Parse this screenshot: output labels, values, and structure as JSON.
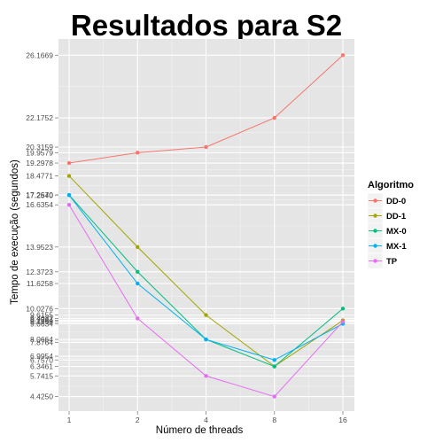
{
  "chart_data": {
    "type": "line",
    "title": "Resultados para S2",
    "xlabel": "Número de threads",
    "ylabel": "Tempo de execução (segundos)",
    "x_categories": [
      "1",
      "2",
      "4",
      "8",
      "16"
    ],
    "ylim": [
      3.5,
      27.2
    ],
    "y_ticks": [
      4.425,
      5.7415,
      6.3461,
      6.757,
      6.9954,
      7.8764,
      8.0664,
      9.0634,
      9.1958,
      9.2784,
      9.4032,
      9.6155,
      10.0276,
      11.6258,
      12.3723,
      13.9523,
      16.6354,
      17.254,
      17.267,
      18.4771,
      19.2978,
      19.9579,
      20.3159,
      22.1752,
      26.1669
    ],
    "y_tick_labels": [
      "4.4250",
      "5.7415",
      "6.3461",
      "6.7570",
      "6.9954",
      "7.8764",
      "8.0664",
      "9.0634",
      "9.1958",
      "9.2784",
      "9.4032",
      "9.6155",
      "10.0276",
      "11.6258",
      "12.3723",
      "13.9523",
      "16.6354",
      "17.2540",
      "17.2670",
      "18.4771",
      "19.2978",
      "19.9579",
      "20.3159",
      "22.1752",
      "26.1669"
    ],
    "grid": true,
    "legend": {
      "title": "Algoritmo",
      "placement": "right"
    },
    "series": [
      {
        "name": "DD-0",
        "color": "#F8766D",
        "values": [
          19.2978,
          19.9579,
          20.3159,
          22.1752,
          26.1669
        ]
      },
      {
        "name": "DD-1",
        "color": "#A3A500",
        "values": [
          18.4771,
          13.9523,
          9.6155,
          6.3461,
          9.2784
        ]
      },
      {
        "name": "MX-0",
        "color": "#00BF7D",
        "values": [
          17.267,
          12.3723,
          8.0664,
          6.3461,
          10.0276
        ]
      },
      {
        "name": "MX-1",
        "color": "#00B0F6",
        "values": [
          17.254,
          11.6258,
          8.0664,
          6.757,
          9.0634
        ]
      },
      {
        "name": "TP",
        "color": "#E76BF3",
        "values": [
          16.6354,
          9.4032,
          5.7415,
          4.425,
          9.1958
        ]
      }
    ]
  }
}
